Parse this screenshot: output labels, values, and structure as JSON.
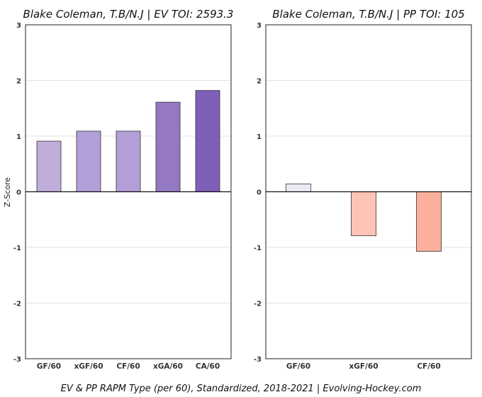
{
  "footer": "EV & PP RAPM Type (per 60), Standardized, 2018-2021    |    Evolving-Hockey.com",
  "ylabel": "Z-Score",
  "chart_data": [
    {
      "type": "bar",
      "title": "Blake Coleman, T.B/N.J  |  EV TOI: 2593.3",
      "categories": [
        "GF/60",
        "xGF/60",
        "CF/60",
        "xGA/60",
        "CA/60"
      ],
      "values": [
        0.91,
        1.09,
        1.09,
        1.61,
        1.82
      ],
      "colors": [
        "#bfaedb",
        "#b39fd7",
        "#b39fd7",
        "#9478c2",
        "#7f5fb7"
      ],
      "ylim": [
        -3,
        3
      ],
      "yticks": [
        -3,
        -2,
        -1,
        0,
        1,
        2,
        3
      ],
      "grid": true,
      "xlabel": "",
      "ylabel": "Z-Score"
    },
    {
      "type": "bar",
      "title": "Blake Coleman, T.B/N.J  |  PP TOI: 105",
      "categories": [
        "GF/60",
        "xGF/60",
        "CF/60"
      ],
      "values": [
        0.14,
        -0.79,
        -1.07
      ],
      "colors": [
        "#ede9f3",
        "#fcc4b4",
        "#fbb09c"
      ],
      "ylim": [
        -3,
        3
      ],
      "yticks": [
        -3,
        -2,
        -1,
        0,
        1,
        2,
        3
      ],
      "grid": true,
      "xlabel": "",
      "ylabel": ""
    }
  ]
}
